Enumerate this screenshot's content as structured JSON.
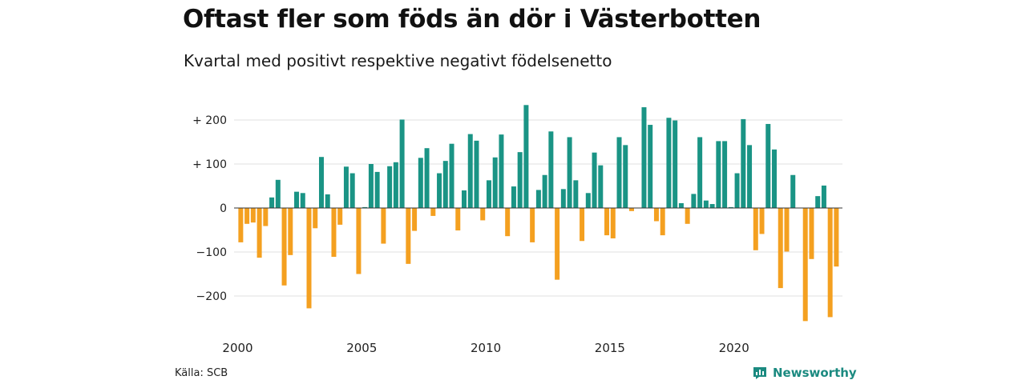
{
  "title": "Oftast fler som föds än dör i Västerbotten",
  "subtitle": "Kvartal med positivt respektive negativt födelsenetto",
  "source": "Källa: SCB",
  "brand": {
    "name": "Newsworthy",
    "icon": "newsworthy-logo-icon",
    "color": "#1b8a80"
  },
  "colors": {
    "positive": "#1a9485",
    "negative": "#f4a020",
    "grid": "#e0e0e0",
    "zero_line": "#333333"
  },
  "chart_data": {
    "type": "bar",
    "title": "Oftast fler som föds än dör i Västerbotten",
    "subtitle": "Kvartal med positivt respektive negativt födelsenetto",
    "xlabel": "",
    "ylabel": "",
    "ylim": [
      -270,
      245
    ],
    "yticks": [
      {
        "value": 200,
        "label": "+ 200"
      },
      {
        "value": 100,
        "label": "+ 100"
      },
      {
        "value": 0,
        "label": "0"
      },
      {
        "value": -100,
        "label": "−100"
      },
      {
        "value": -200,
        "label": "−200"
      }
    ],
    "xticks": [
      "2000",
      "2005",
      "2010",
      "2015",
      "2020"
    ],
    "start_year": 2000,
    "grid": true,
    "series": [
      {
        "values": [
          -78,
          -36,
          -33,
          -113,
          -41,
          24,
          64,
          -176,
          -107,
          37,
          34,
          -228,
          -46,
          116,
          31,
          -111,
          -38,
          94,
          79,
          -150,
          2,
          100,
          82,
          -81,
          95,
          104,
          201,
          -127,
          -52,
          114,
          136,
          -18,
          79,
          107,
          146,
          -51,
          40,
          168,
          153,
          -28,
          63,
          115,
          167,
          -64,
          49,
          127,
          234,
          -78,
          41,
          75,
          174,
          -163,
          43,
          161,
          63,
          -75,
          34,
          126,
          97,
          -62,
          -69,
          161,
          143,
          -7,
          0,
          229,
          189,
          -30,
          -62,
          205,
          199,
          11,
          -36,
          32,
          161,
          17,
          9,
          152,
          152,
          2,
          79,
          202,
          143,
          -96,
          -59,
          191,
          133,
          -182,
          -99,
          75,
          0,
          -257,
          -116,
          27,
          51,
          -248,
          -133
        ]
      }
    ]
  }
}
